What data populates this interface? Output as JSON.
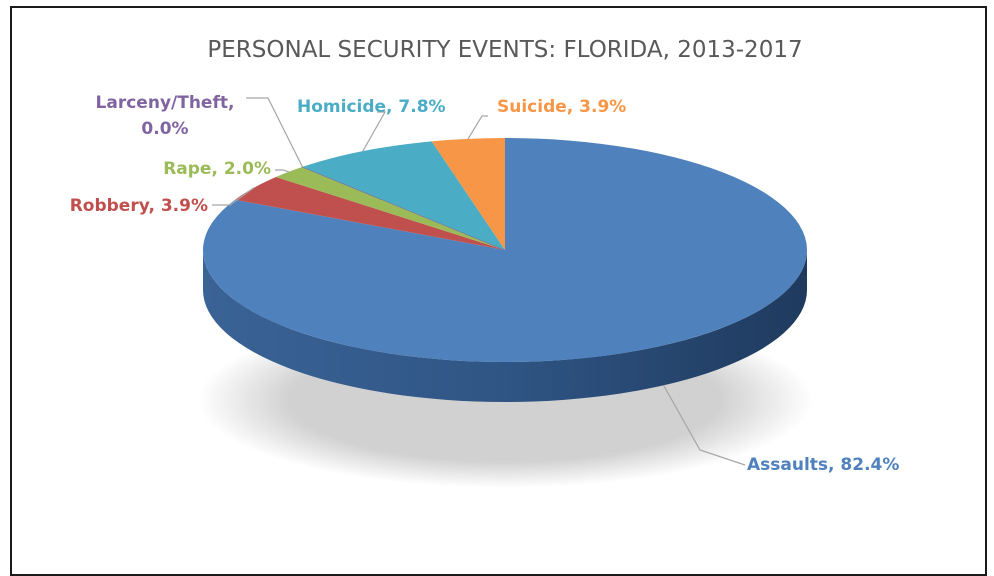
{
  "chart_data": {
    "type": "pie",
    "style": "3d",
    "title": "PERSONAL SECURITY EVENTS: FLORIDA, 2013-2017",
    "slices": [
      {
        "name": "Assaults",
        "value": 82.4,
        "label": "Assaults, 82.4%",
        "color": "#4F81BD"
      },
      {
        "name": "Robbery",
        "value": 3.9,
        "label": "Robbery, 3.9%",
        "color": "#C0504D"
      },
      {
        "name": "Rape",
        "value": 2.0,
        "label": "Rape, 2.0%",
        "color": "#9BBB59"
      },
      {
        "name": "Larceny/Theft",
        "value": 0.0,
        "label_lines": [
          "Larceny/Theft,",
          "0.0%"
        ],
        "color": "#8064A2"
      },
      {
        "name": "Homicide",
        "value": 7.8,
        "label": "Homicide, 7.8%",
        "color": "#4BACC6"
      },
      {
        "name": "Suicide",
        "value": 3.9,
        "label": "Suicide, 3.9%",
        "color": "#F79646"
      }
    ],
    "legend": "none"
  }
}
